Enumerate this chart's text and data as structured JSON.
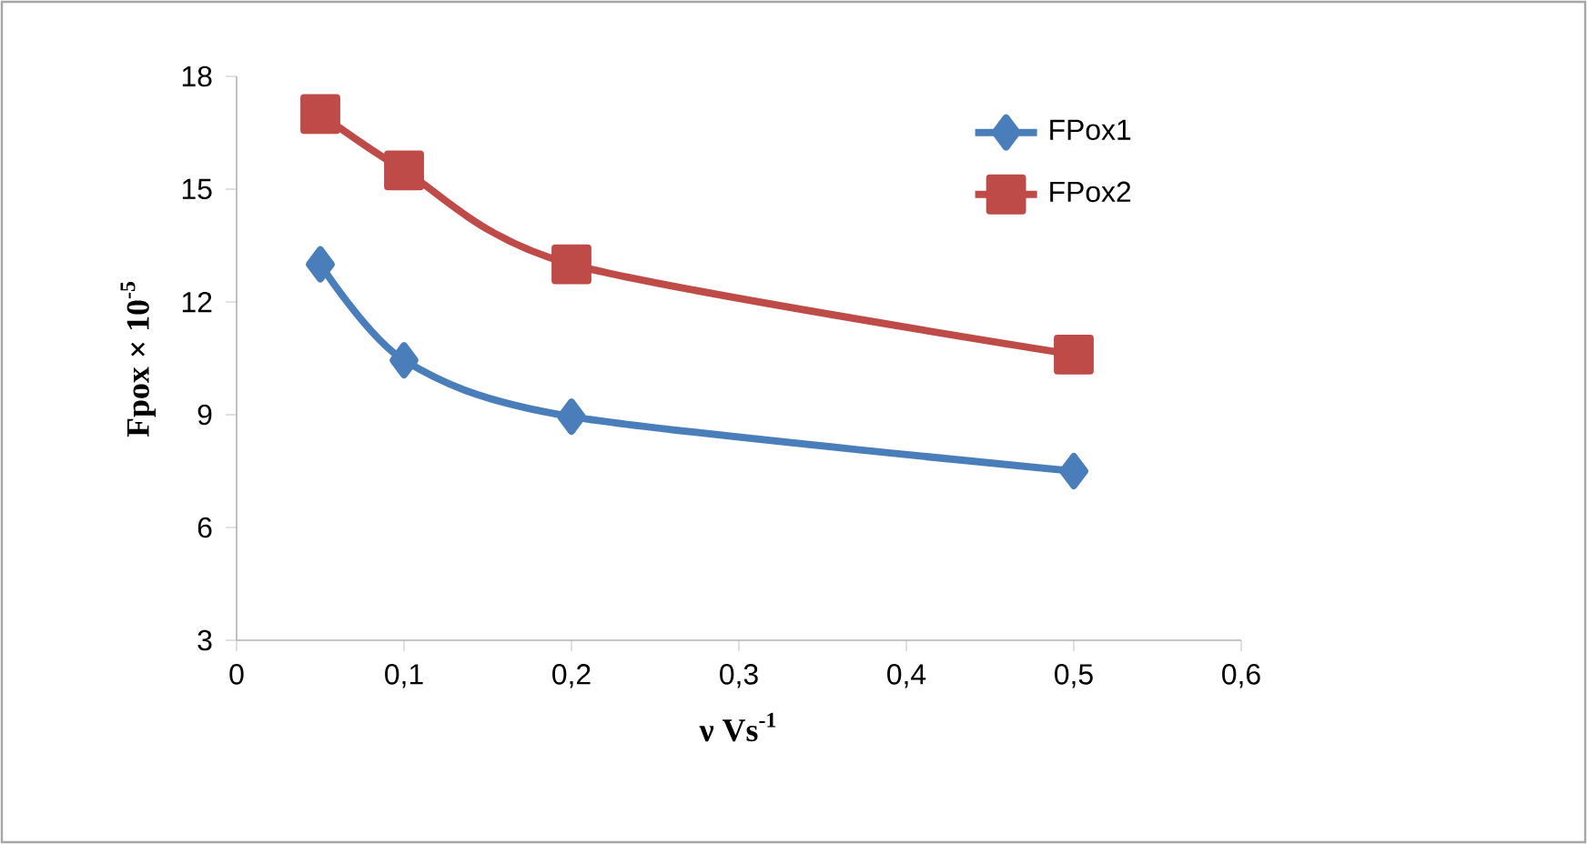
{
  "chart_data": {
    "type": "line",
    "xlabel": "ν Vs$^{-1}$",
    "ylabel": "Fpox × 10$^{-5}$",
    "x": [
      0.05,
      0.1,
      0.2,
      0.5
    ],
    "series": [
      {
        "name": "FPox1",
        "color": "#4a7ebb",
        "marker": "diamond",
        "values": [
          13,
          10.45,
          8.95,
          7.5
        ]
      },
      {
        "name": "FPox2",
        "color": "#be4b48",
        "marker": "square",
        "values": [
          17,
          15.5,
          13,
          10.6
        ]
      }
    ],
    "xlim": [
      0,
      0.6
    ],
    "xticks": [
      0,
      {
        "value": 0.1,
        "label": "0,1"
      },
      {
        "value": 0.2,
        "label": "0,2"
      },
      {
        "value": 0.3,
        "label": "0,3"
      },
      {
        "value": 0.4,
        "label": "0,4"
      },
      {
        "value": 0.5,
        "label": "0,5"
      },
      {
        "value": 0.6,
        "label": "0,6"
      }
    ],
    "ylim": [
      3,
      18
    ],
    "yticks": [
      3,
      6,
      9,
      12,
      15,
      18
    ],
    "grid": false,
    "legend": "top right",
    "line_style": "solid"
  }
}
